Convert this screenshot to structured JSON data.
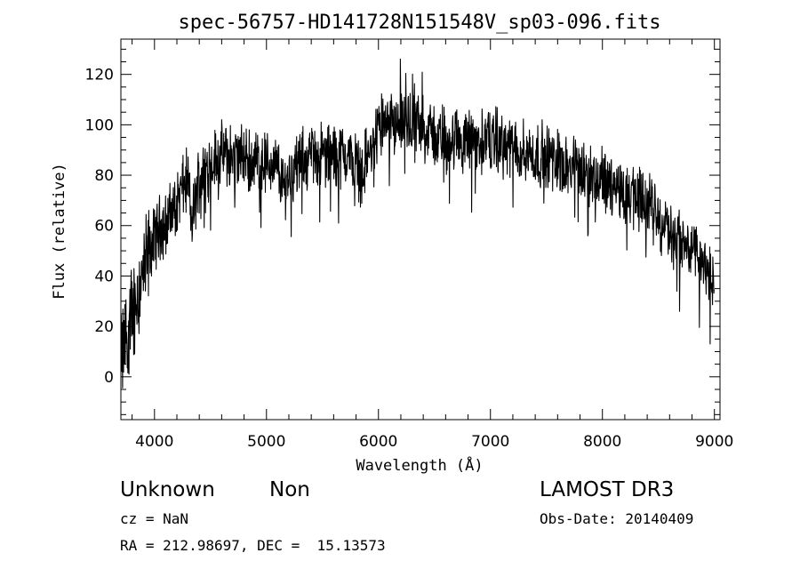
{
  "chart_data": {
    "type": "line",
    "title": "spec-56757-HD141728N151548V_sp03-096.fits",
    "xlabel": "Wavelength (Å)",
    "ylabel": "Flux (relative)",
    "xlim": [
      3700,
      9050
    ],
    "ylim": [
      -17,
      134
    ],
    "xticks": [
      4000,
      5000,
      6000,
      7000,
      8000,
      9000
    ],
    "yticks": [
      0,
      20,
      40,
      60,
      80,
      100,
      120
    ],
    "grid": false,
    "series": [
      {
        "x": [
          3700,
          3720,
          3740,
          3760,
          3780,
          3800,
          3830,
          3860,
          3900,
          3930,
          3960,
          4000,
          4050,
          4100,
          4150,
          4200,
          4250,
          4300,
          4330,
          4400,
          4500,
          4600,
          4700,
          4800,
          4900,
          5000,
          5100,
          5150,
          5200,
          5300,
          5400,
          5500,
          5600,
          5700,
          5800,
          5850,
          5900,
          5950,
          6000,
          6050,
          6100,
          6200,
          6300,
          6400,
          6500,
          6600,
          6700,
          6800,
          6900,
          7000,
          7100,
          7200,
          7300,
          7400,
          7500,
          7600,
          7700,
          7800,
          7900,
          8000,
          8100,
          8200,
          8300,
          8400,
          8500,
          8600,
          8700,
          8800,
          8900,
          8950,
          9000
        ],
        "y": [
          5,
          10,
          15,
          20,
          25,
          25,
          30,
          35,
          40,
          45,
          50,
          55,
          60,
          60,
          65,
          70,
          75,
          78,
          60,
          80,
          85,
          88,
          88,
          87,
          86,
          85,
          83,
          75,
          80,
          85,
          88,
          88,
          88,
          88,
          86,
          80,
          88,
          90,
          100,
          98,
          98,
          100,
          100,
          98,
          96,
          95,
          94,
          93,
          93,
          95,
          92,
          90,
          89,
          88,
          88,
          87,
          85,
          82,
          80,
          78,
          76,
          74,
          72,
          68,
          64,
          58,
          55,
          50,
          46,
          40,
          35
        ],
        "noise_amplitude": 10
      }
    ]
  },
  "info": {
    "class_label": "Unknown",
    "subclass_label": "Non",
    "survey_label": "LAMOST DR3",
    "cz_label": "cz = NaN",
    "obs_date_label": "Obs-Date: 20140409",
    "coords_label": "RA = 212.98697, DEC =  15.13573"
  }
}
